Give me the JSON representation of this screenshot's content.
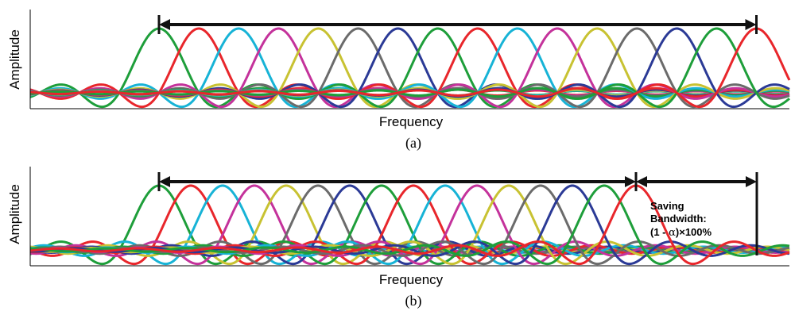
{
  "panels": [
    {
      "id": "a",
      "ylabel": "Amplitude",
      "xlabel": "Frequency",
      "caption": "(a)",
      "subcarrier_count": 16,
      "spacing_ratio": 1.0,
      "span_arrow": {
        "from_subcarrier": 1,
        "to_subcarrier": 16
      }
    },
    {
      "id": "b",
      "ylabel": "Amplitude",
      "xlabel": "Frequency",
      "caption": "(b)",
      "subcarrier_count": 16,
      "spacing_ratio": 0.8,
      "span_arrow": {
        "from_subcarrier": 1,
        "to_subcarrier": 16
      },
      "saving_arrow": {
        "from_subcarrier": 16,
        "to_subcarrier": 20
      },
      "annotation": {
        "line1": "Saving",
        "line2": "Bandwidth:",
        "line3_pre": "(1 - ",
        "line3_symbol": "α",
        "line3_post": ")×100%"
      }
    }
  ],
  "colors": [
    "#1e9e3a",
    "#e8262b",
    "#17b3d6",
    "#c4329b",
    "#c8c232",
    "#6b6b6b",
    "#2b3a96"
  ]
}
